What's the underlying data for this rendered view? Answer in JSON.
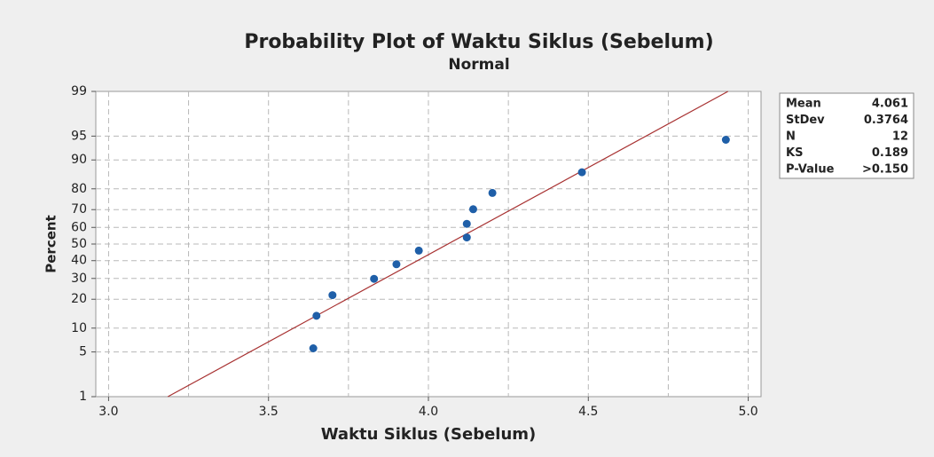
{
  "chart_data": {
    "type": "probability",
    "title": "Probability Plot of Waktu Siklus (Sebelum)",
    "subtitle": "Normal",
    "xlabel": "Waktu Siklus (Sebelum)",
    "ylabel": "Percent",
    "yscale": "normal-probability",
    "x": [
      3.64,
      3.65,
      3.7,
      3.83,
      3.9,
      3.97,
      4.12,
      4.12,
      4.14,
      4.2,
      4.48,
      4.93
    ],
    "values": [
      5.6,
      13.7,
      21.8,
      29.8,
      37.9,
      46.0,
      54.0,
      62.1,
      70.2,
      78.2,
      86.3,
      94.4
    ],
    "color": "#1f5fa8",
    "fit_color": "#a83232",
    "xlim": [
      2.96,
      5.04
    ],
    "xticks": [
      {
        "value": 3,
        "label": "3.0"
      },
      3.5,
      {
        "value": 4,
        "label": "4.0"
      },
      4.5,
      {
        "value": 5,
        "label": "5.0"
      }
    ],
    "xminorticks": [
      3.25,
      3.75,
      4.25,
      4.75
    ],
    "ylim": [
      1,
      99
    ],
    "yticks": [
      1,
      5,
      10,
      20,
      30,
      40,
      50,
      60,
      70,
      80,
      90,
      95,
      99
    ],
    "grid": true,
    "stats": [
      {
        "label": "Mean",
        "value": 4.061
      },
      {
        "label": "StDev",
        "value": 0.3764
      },
      {
        "label": "N",
        "value": 12
      },
      {
        "label": "KS",
        "value": 0.189
      },
      {
        "label": "P-Value",
        "value": ">0.150"
      }
    ]
  }
}
